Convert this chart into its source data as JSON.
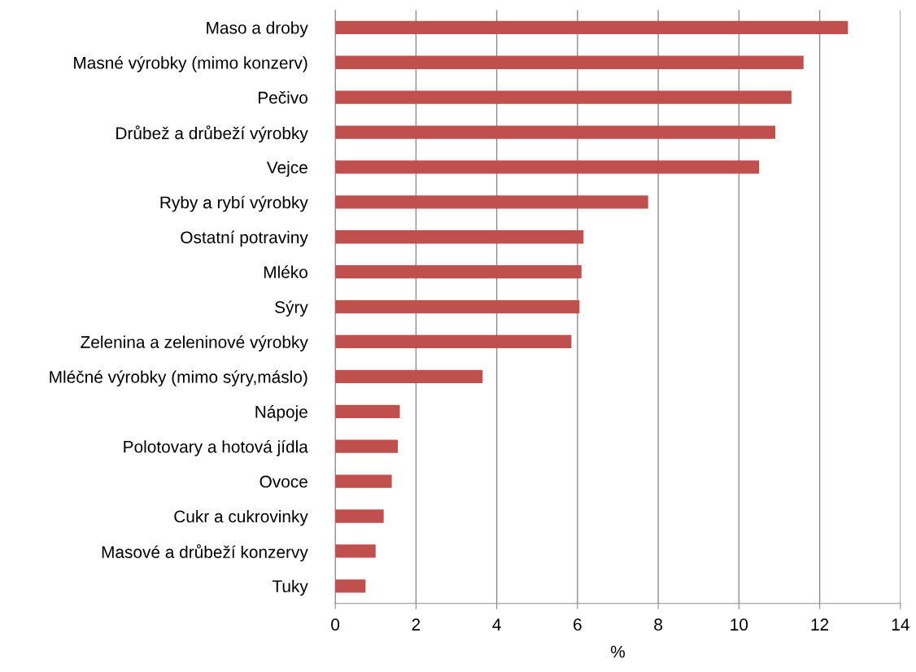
{
  "chart_data": {
    "type": "bar",
    "orientation": "horizontal",
    "xlabel": "%",
    "categories": [
      "Maso a droby",
      "Masné výrobky (mimo konzerv)",
      "Pečivo",
      "Drůbež a drůbeží výrobky",
      "Vejce",
      "Ryby a rybí výrobky",
      "Ostatní potraviny",
      "Mléko",
      "Sýry",
      "Zelenina a zeleninové výrobky",
      "Mléčné výrobky (mimo sýry,máslo)",
      "Nápoje",
      "Polotovary a hotová jídla",
      "Ovoce",
      "Cukr a cukrovinky",
      "Masové a drůbeží konzervy",
      "Tuky"
    ],
    "values": [
      12.7,
      11.6,
      11.3,
      10.9,
      10.5,
      7.75,
      6.15,
      6.1,
      6.05,
      5.85,
      3.65,
      1.6,
      1.55,
      1.4,
      1.2,
      1.0,
      0.75
    ],
    "color": "#c0504d",
    "xlim": [
      0,
      14
    ],
    "xticks": [
      0,
      2,
      4,
      6,
      8,
      10,
      12,
      14
    ],
    "grid": "x",
    "legend": false
  }
}
